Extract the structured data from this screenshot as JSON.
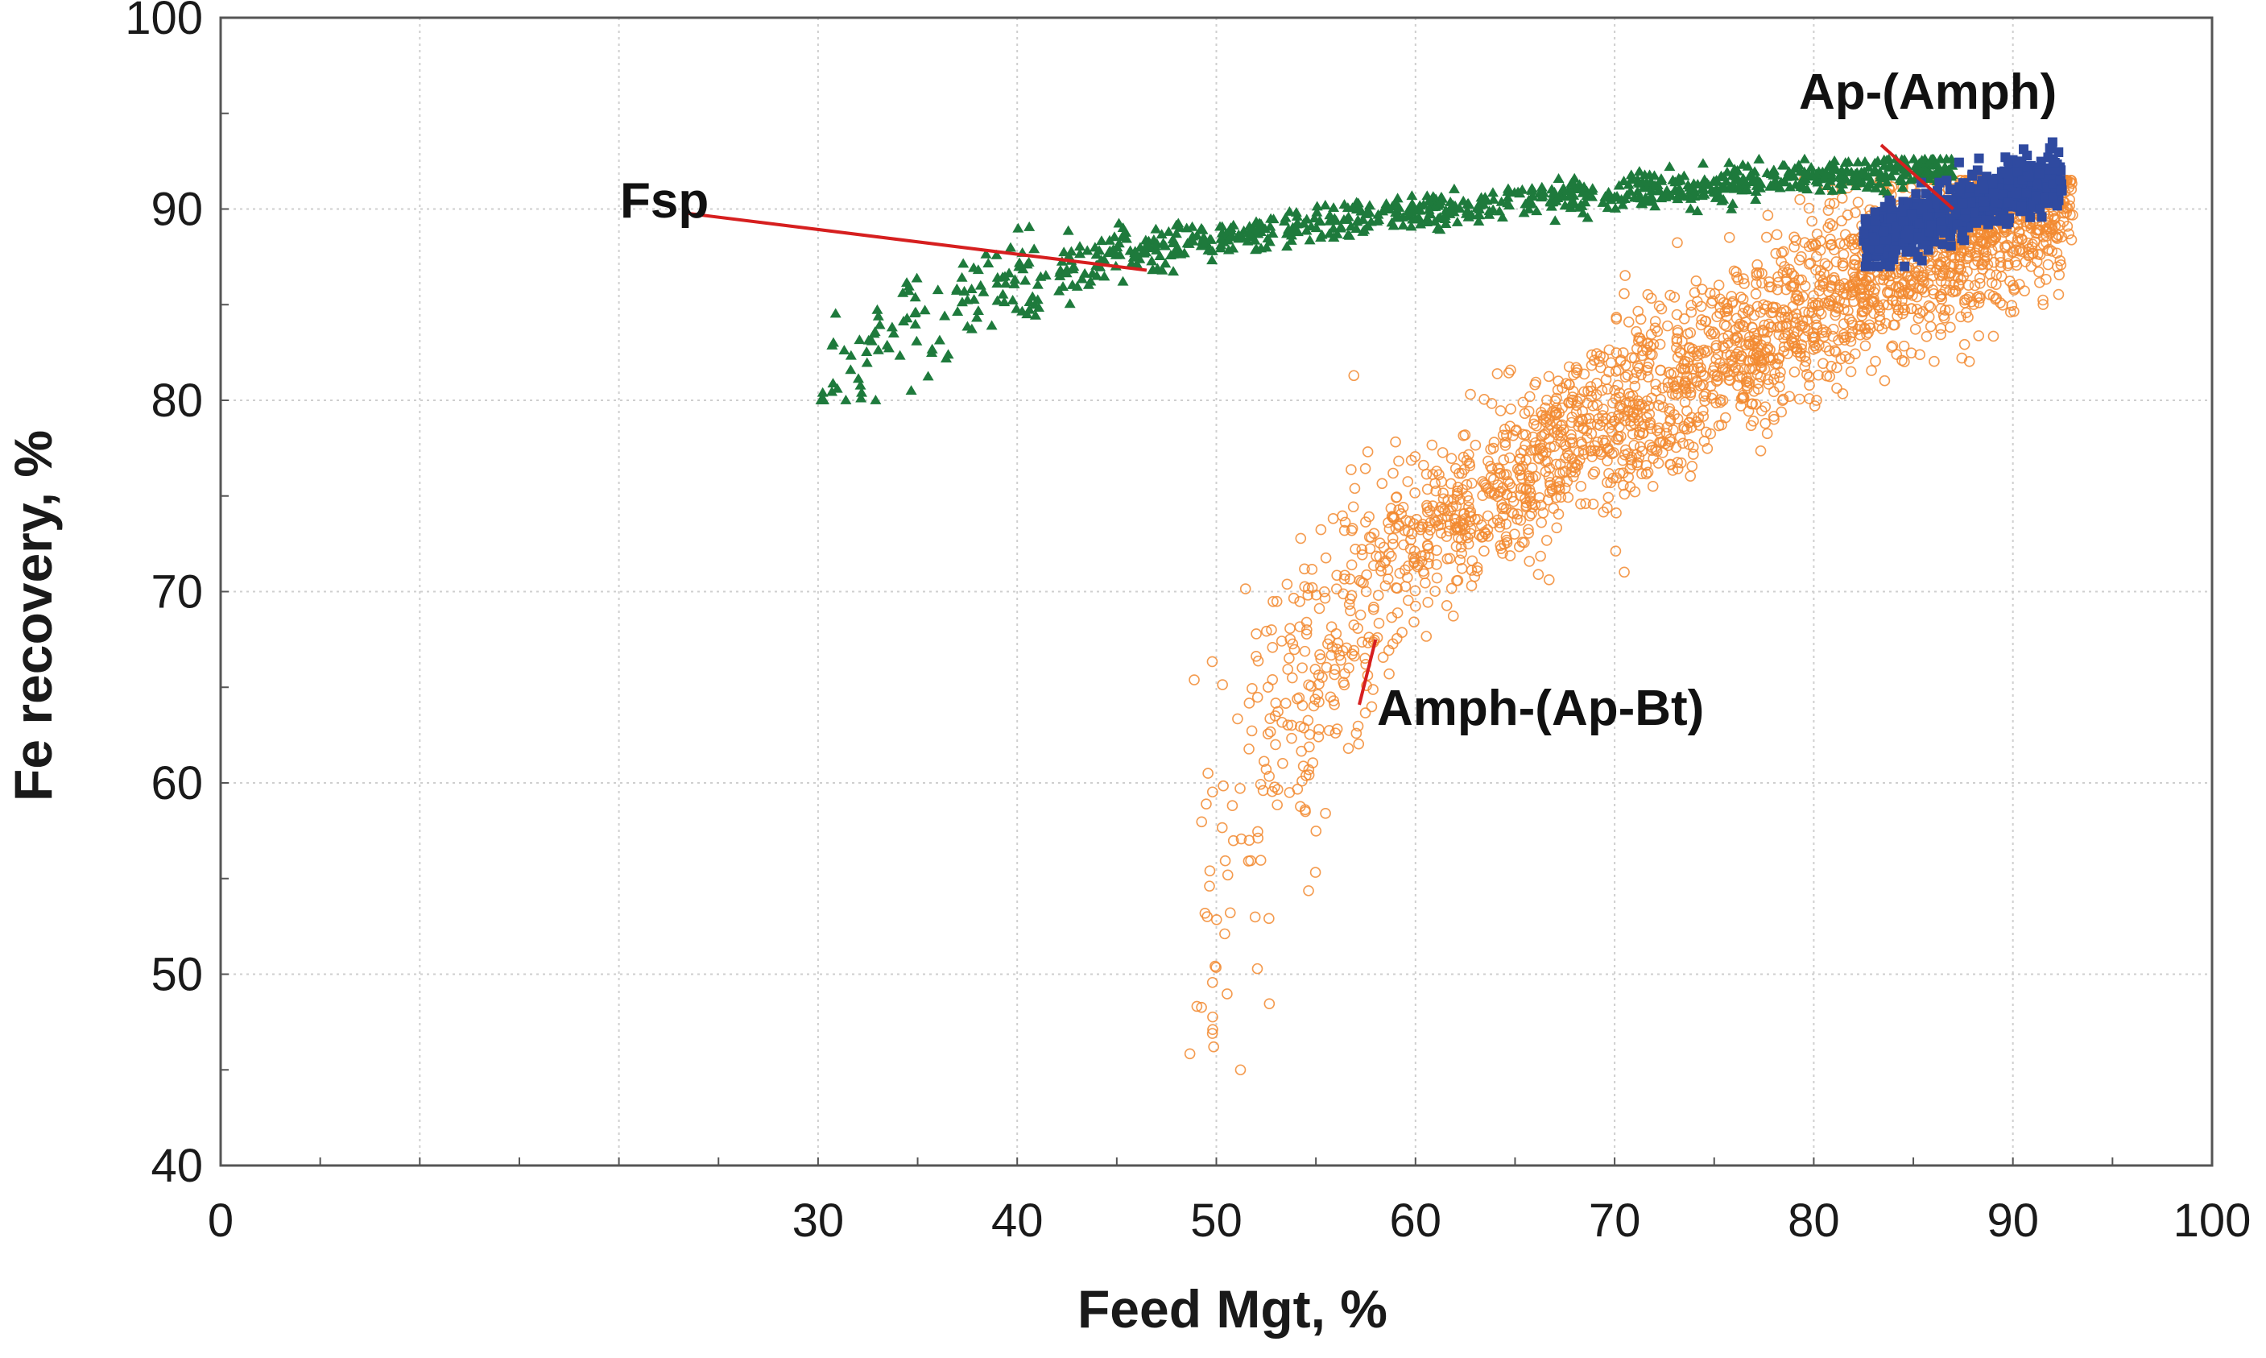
{
  "chart_data": {
    "type": "scatter",
    "title": "",
    "xlabel": "Feed Mgt, %",
    "ylabel": "Fe recovery, %",
    "xlim": [
      0,
      100
    ],
    "ylim": [
      40,
      100
    ],
    "grid": true,
    "xticks": [
      "0",
      "30",
      "40",
      "50",
      "60",
      "70",
      "80",
      "90",
      "100"
    ],
    "yticks": [
      "40",
      "50",
      "60",
      "70",
      "80",
      "90",
      "100"
    ],
    "series": [
      {
        "name": "Fsp",
        "marker": "triangle",
        "color": "#1e7a3c",
        "x_range": [
          30,
          87
        ],
        "y_range": [
          80,
          92.6
        ],
        "count": 900,
        "trend": [
          [
            30,
            80.0
          ],
          [
            33,
            83.0
          ],
          [
            38,
            85.5
          ],
          [
            45,
            87.5
          ],
          [
            55,
            89.3
          ],
          [
            65,
            90.4
          ],
          [
            75,
            91.3
          ],
          [
            87,
            92.2
          ]
        ]
      },
      {
        "name": "Amph-(Ap-Bt)",
        "marker": "open-circle",
        "color": "#f28a30",
        "x_range": [
          48.5,
          93
        ],
        "y_range": [
          45,
          91.5
        ],
        "count": 2500,
        "trend": [
          [
            49,
            52
          ],
          [
            52,
            62
          ],
          [
            55,
            67
          ],
          [
            60,
            72.5
          ],
          [
            65,
            76
          ],
          [
            70,
            79
          ],
          [
            75,
            82
          ],
          [
            80,
            85
          ],
          [
            85,
            87.5
          ],
          [
            90,
            89.5
          ],
          [
            92.5,
            90.6
          ]
        ]
      },
      {
        "name": "Ap-(Amph)",
        "marker": "filled-square",
        "color": "#2f4aa0",
        "x_range": [
          82.5,
          92.5
        ],
        "y_range": [
          87,
          93.5
        ],
        "count": 700,
        "trend": [
          [
            82.5,
            88.3
          ],
          [
            85,
            89.2
          ],
          [
            88,
            90.3
          ],
          [
            92.5,
            91.6
          ]
        ]
      }
    ],
    "annotations": [
      {
        "text": "Fsp",
        "points_to": [
          46.5,
          86.8
        ]
      },
      {
        "text": "Ap-(Amph)",
        "points_to": [
          87,
          90
        ]
      },
      {
        "text": "Amph-(Ap-Bt)",
        "points_to": [
          58,
          67.5
        ]
      }
    ]
  }
}
